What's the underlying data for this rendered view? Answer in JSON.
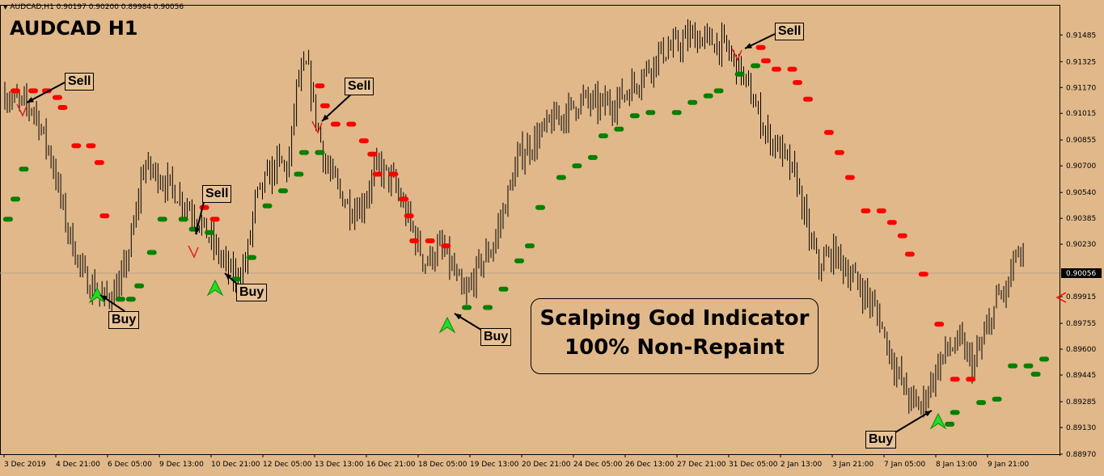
{
  "header": {
    "symbol_line": "AUDCAD,H1  0.90197 0.90200 0.89984 0.90056",
    "title": "AUDCAD H1"
  },
  "promo": {
    "line1": "Scalping God Indicator",
    "line2": "100% Non-Repaint"
  },
  "annotations": [
    {
      "label": "Sell",
      "kind": "sell"
    },
    {
      "label": "Sell",
      "kind": "sell"
    },
    {
      "label": "Sell",
      "kind": "sell"
    },
    {
      "label": "Sell",
      "kind": "sell"
    },
    {
      "label": "Buy",
      "kind": "buy"
    },
    {
      "label": "Buy",
      "kind": "buy"
    },
    {
      "label": "Buy",
      "kind": "buy"
    },
    {
      "label": "Buy",
      "kind": "buy"
    }
  ],
  "colors": {
    "background": "#E0B88A",
    "candles": "#000000",
    "sell_dots": "#FF0000",
    "buy_dots": "#008000",
    "buy_arrow": "#22DD22",
    "current_price_marker": "#FF0000"
  },
  "chart_data": {
    "type": "line",
    "title": "AUDCAD H1",
    "ylim": [
      0.8897,
      0.9153
    ],
    "grid": false,
    "y_ticks": [
      "0.91485",
      "0.91325",
      "0.91170",
      "0.91015",
      "0.90855",
      "0.90700",
      "0.90540",
      "0.90385",
      "0.90230",
      "0.89915",
      "0.89755",
      "0.89600",
      "0.89445",
      "0.89285",
      "0.89130",
      "0.88970"
    ],
    "current_price": "0.90056",
    "x_ticks": [
      "3 Dec 2019",
      "4 Dec 21:00",
      "6 Dec 05:00",
      "9 Dec 13:00",
      "10 Dec 21:00",
      "12 Dec 05:00",
      "13 Dec 13:00",
      "16 Dec 21:00",
      "18 Dec 05:00",
      "19 Dec 13:00",
      "20 Dec 21:00",
      "24 Dec 05:00",
      "26 Dec 13:00",
      "27 Dec 21:00",
      "31 Dec 05:00",
      "2 Jan 13:00",
      "3 Jan 21:00",
      "7 Jan 05:00",
      "8 Jan 13:00",
      "9 Jan 21:00"
    ],
    "price_path": [
      [
        0,
        0.9113
      ],
      [
        0.012,
        0.9108
      ],
      [
        0.028,
        0.9104
      ],
      [
        0.045,
        0.9073
      ],
      [
        0.058,
        0.9036
      ],
      [
        0.075,
        0.9003
      ],
      [
        0.095,
        0.899
      ],
      [
        0.11,
        0.8998
      ],
      [
        0.122,
        0.903
      ],
      [
        0.132,
        0.907
      ],
      [
        0.145,
        0.9065
      ],
      [
        0.16,
        0.9056
      ],
      [
        0.18,
        0.9042
      ],
      [
        0.2,
        0.9021
      ],
      [
        0.218,
        0.9002
      ],
      [
        0.23,
        0.9012
      ],
      [
        0.238,
        0.9048
      ],
      [
        0.248,
        0.906
      ],
      [
        0.26,
        0.9072
      ],
      [
        0.27,
        0.9068
      ],
      [
        0.278,
        0.9118
      ],
      [
        0.288,
        0.913
      ],
      [
        0.296,
        0.91
      ],
      [
        0.305,
        0.9072
      ],
      [
        0.318,
        0.9055
      ],
      [
        0.33,
        0.9044
      ],
      [
        0.34,
        0.9046
      ],
      [
        0.355,
        0.907
      ],
      [
        0.37,
        0.906
      ],
      [
        0.385,
        0.9037
      ],
      [
        0.4,
        0.9012
      ],
      [
        0.415,
        0.9021
      ],
      [
        0.425,
        0.901
      ],
      [
        0.438,
        0.899
      ],
      [
        0.45,
        0.9008
      ],
      [
        0.465,
        0.9022
      ],
      [
        0.478,
        0.905
      ],
      [
        0.49,
        0.9076
      ],
      [
        0.505,
        0.9085
      ],
      [
        0.52,
        0.9096
      ],
      [
        0.535,
        0.9102
      ],
      [
        0.55,
        0.911
      ],
      [
        0.565,
        0.9106
      ],
      [
        0.58,
        0.9108
      ],
      [
        0.595,
        0.9116
      ],
      [
        0.61,
        0.9127
      ],
      [
        0.625,
        0.9138
      ],
      [
        0.64,
        0.9142
      ],
      [
        0.655,
        0.9148
      ],
      [
        0.67,
        0.9145
      ],
      [
        0.685,
        0.9142
      ],
      [
        0.7,
        0.9128
      ],
      [
        0.712,
        0.911
      ],
      [
        0.725,
        0.909
      ],
      [
        0.74,
        0.9078
      ],
      [
        0.755,
        0.906
      ],
      [
        0.765,
        0.903
      ],
      [
        0.775,
        0.901
      ],
      [
        0.79,
        0.9018
      ],
      [
        0.805,
        0.9005
      ],
      [
        0.82,
        0.8993
      ],
      [
        0.832,
        0.898
      ],
      [
        0.842,
        0.896
      ],
      [
        0.852,
        0.8943
      ],
      [
        0.862,
        0.893
      ],
      [
        0.872,
        0.8925
      ],
      [
        0.882,
        0.894
      ],
      [
        0.895,
        0.8958
      ],
      [
        0.91,
        0.8964
      ],
      [
        0.922,
        0.895
      ],
      [
        0.935,
        0.897
      ],
      [
        0.945,
        0.899
      ],
      [
        0.955,
        0.8996
      ],
      [
        0.963,
        0.9018
      ],
      [
        0.97,
        0.901
      ]
    ],
    "volatility_seeds": [
      0.0004,
      0.0005,
      0.0006
    ],
    "sell_dots": [
      [
        0.01,
        0.9115
      ],
      [
        0.027,
        0.9115
      ],
      [
        0.04,
        0.9115
      ],
      [
        0.05,
        0.9111
      ],
      [
        0.055,
        0.9105
      ],
      [
        0.068,
        0.9082
      ],
      [
        0.082,
        0.9082
      ],
      [
        0.09,
        0.9072
      ],
      [
        0.095,
        0.904
      ],
      [
        0.19,
        0.9045
      ],
      [
        0.2,
        0.9038
      ],
      [
        0.3,
        0.9118
      ],
      [
        0.305,
        0.9106
      ],
      [
        0.315,
        0.9095
      ],
      [
        0.33,
        0.9095
      ],
      [
        0.342,
        0.9085
      ],
      [
        0.35,
        0.9077
      ],
      [
        0.355,
        0.9065
      ],
      [
        0.37,
        0.9065
      ],
      [
        0.38,
        0.905
      ],
      [
        0.385,
        0.904
      ],
      [
        0.39,
        0.9025
      ],
      [
        0.405,
        0.9025
      ],
      [
        0.42,
        0.9022
      ],
      [
        0.72,
        0.9141
      ],
      [
        0.725,
        0.9133
      ],
      [
        0.735,
        0.9128
      ],
      [
        0.75,
        0.9128
      ],
      [
        0.755,
        0.912
      ],
      [
        0.765,
        0.911
      ],
      [
        0.785,
        0.909
      ],
      [
        0.795,
        0.9078
      ],
      [
        0.805,
        0.9063
      ],
      [
        0.82,
        0.9043
      ],
      [
        0.835,
        0.9043
      ],
      [
        0.845,
        0.9036
      ],
      [
        0.855,
        0.9028
      ],
      [
        0.862,
        0.9017
      ],
      [
        0.875,
        0.9005
      ],
      [
        0.89,
        0.8975
      ],
      [
        0.905,
        0.8942
      ],
      [
        0.92,
        0.8942
      ]
    ],
    "buy_dots": [
      [
        0.003,
        0.9038
      ],
      [
        0.01,
        0.905
      ],
      [
        0.018,
        0.9068
      ],
      [
        0.11,
        0.899
      ],
      [
        0.12,
        0.899
      ],
      [
        0.128,
        0.8998
      ],
      [
        0.14,
        0.9018
      ],
      [
        0.15,
        0.9038
      ],
      [
        0.17,
        0.9038
      ],
      [
        0.18,
        0.9032
      ],
      [
        0.195,
        0.903
      ],
      [
        0.22,
        0.9002
      ],
      [
        0.235,
        0.9015
      ],
      [
        0.25,
        0.9046
      ],
      [
        0.265,
        0.9055
      ],
      [
        0.28,
        0.9065
      ],
      [
        0.285,
        0.9078
      ],
      [
        0.3,
        0.9078
      ],
      [
        0.44,
        0.8985
      ],
      [
        0.46,
        0.8985
      ],
      [
        0.475,
        0.8996
      ],
      [
        0.49,
        0.9013
      ],
      [
        0.5,
        0.9022
      ],
      [
        0.51,
        0.9045
      ],
      [
        0.53,
        0.9063
      ],
      [
        0.545,
        0.907
      ],
      [
        0.56,
        0.9075
      ],
      [
        0.57,
        0.9088
      ],
      [
        0.585,
        0.9092
      ],
      [
        0.6,
        0.91
      ],
      [
        0.615,
        0.9102
      ],
      [
        0.64,
        0.9102
      ],
      [
        0.655,
        0.9108
      ],
      [
        0.67,
        0.9112
      ],
      [
        0.68,
        0.9115
      ],
      [
        0.7,
        0.9125
      ],
      [
        0.715,
        0.913
      ],
      [
        0.9,
        0.8915
      ],
      [
        0.905,
        0.8922
      ],
      [
        0.93,
        0.8928
      ],
      [
        0.945,
        0.893
      ],
      [
        0.96,
        0.895
      ],
      [
        0.975,
        0.895
      ],
      [
        0.982,
        0.8945
      ],
      [
        0.99,
        0.8954
      ]
    ]
  }
}
